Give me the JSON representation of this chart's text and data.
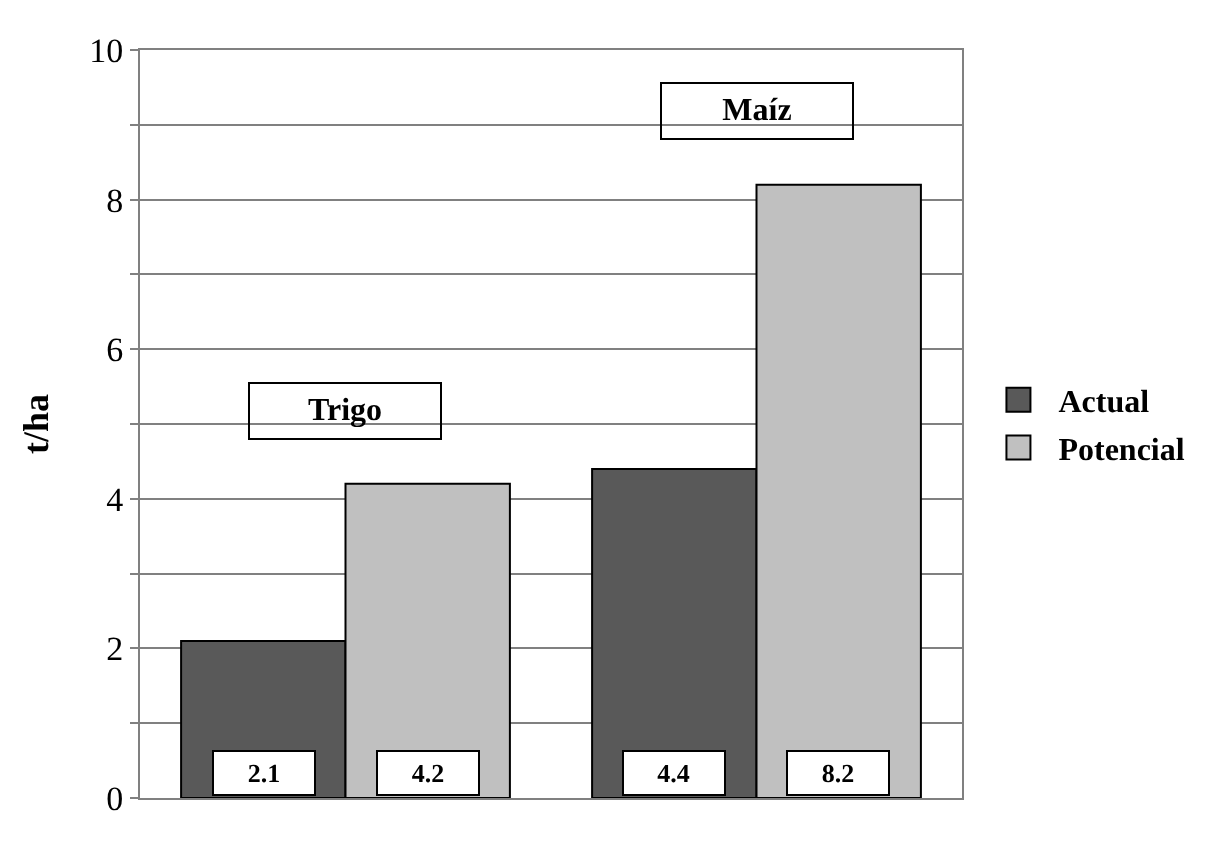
{
  "chart_data": {
    "type": "bar",
    "ylabel": "t/ha",
    "categories": [
      "Trigo",
      "Maíz"
    ],
    "series": [
      {
        "name": "Actual",
        "color": "#595959",
        "values": [
          2.1,
          4.4
        ]
      },
      {
        "name": "Potencial",
        "color": "#c0c0c0",
        "values": [
          4.2,
          8.2
        ]
      }
    ],
    "ylim": [
      0,
      10
    ],
    "yticks": [
      0,
      {
        "value": 1,
        "label": null
      },
      2,
      {
        "value": 3,
        "label": null
      },
      4,
      {
        "value": 5,
        "label": null
      },
      6,
      {
        "value": 7,
        "label": null
      },
      8,
      {
        "value": 9,
        "label": null
      },
      10
    ],
    "grid": "y",
    "legend": "right",
    "data_labels": true
  }
}
